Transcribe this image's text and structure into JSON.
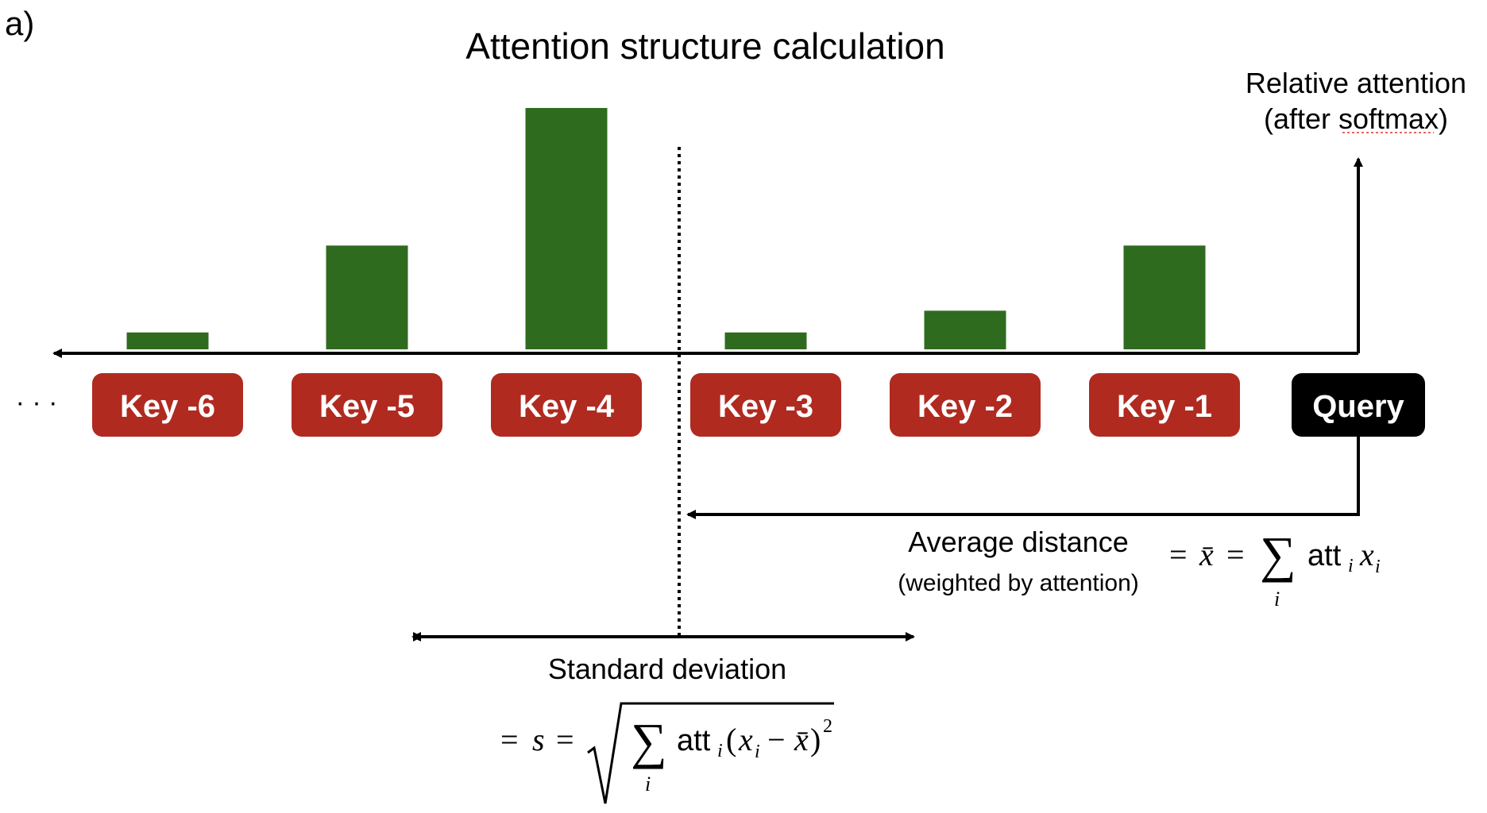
{
  "panel_label": "a)",
  "title": "Attention structure calculation",
  "y_axis": {
    "label_line1": "Relative attention",
    "label_line2": "(after softmax)"
  },
  "ellipsis": "· · ·",
  "tokens": [
    {
      "label": "Key -6",
      "attention": 0.07
    },
    {
      "label": "Key -5",
      "attention": 0.43
    },
    {
      "label": "Key -4",
      "attention": 1.0
    },
    {
      "label": "Key -3",
      "attention": 0.07
    },
    {
      "label": "Key -2",
      "attention": 0.16
    },
    {
      "label": "Key -1",
      "attention": 0.43
    }
  ],
  "query_label": "Query",
  "average_distance": {
    "label_line1": "Average distance",
    "label_line2": "(weighted by attention)",
    "formula": {
      "eq": "=",
      "xbar": "x̄",
      "sum": "∑",
      "sub": "i",
      "att": "att",
      "att_sub": "i",
      "x": "x",
      "x_sub": "i"
    }
  },
  "standard_deviation": {
    "label": "Standard deviation",
    "formula": {
      "eq": "=",
      "s": "s",
      "sum": "∑",
      "sub": "i",
      "att": "att",
      "att_sub": "i",
      "open": "(",
      "x": "x",
      "x_sub": "i",
      "minus": "−",
      "xbar": "x̄",
      "close": ")",
      "sup": "2"
    }
  },
  "colors": {
    "bar": "#2f6b1f",
    "key_box": "#b02a20",
    "query_box": "#000000",
    "box_text": "#ffffff"
  }
}
